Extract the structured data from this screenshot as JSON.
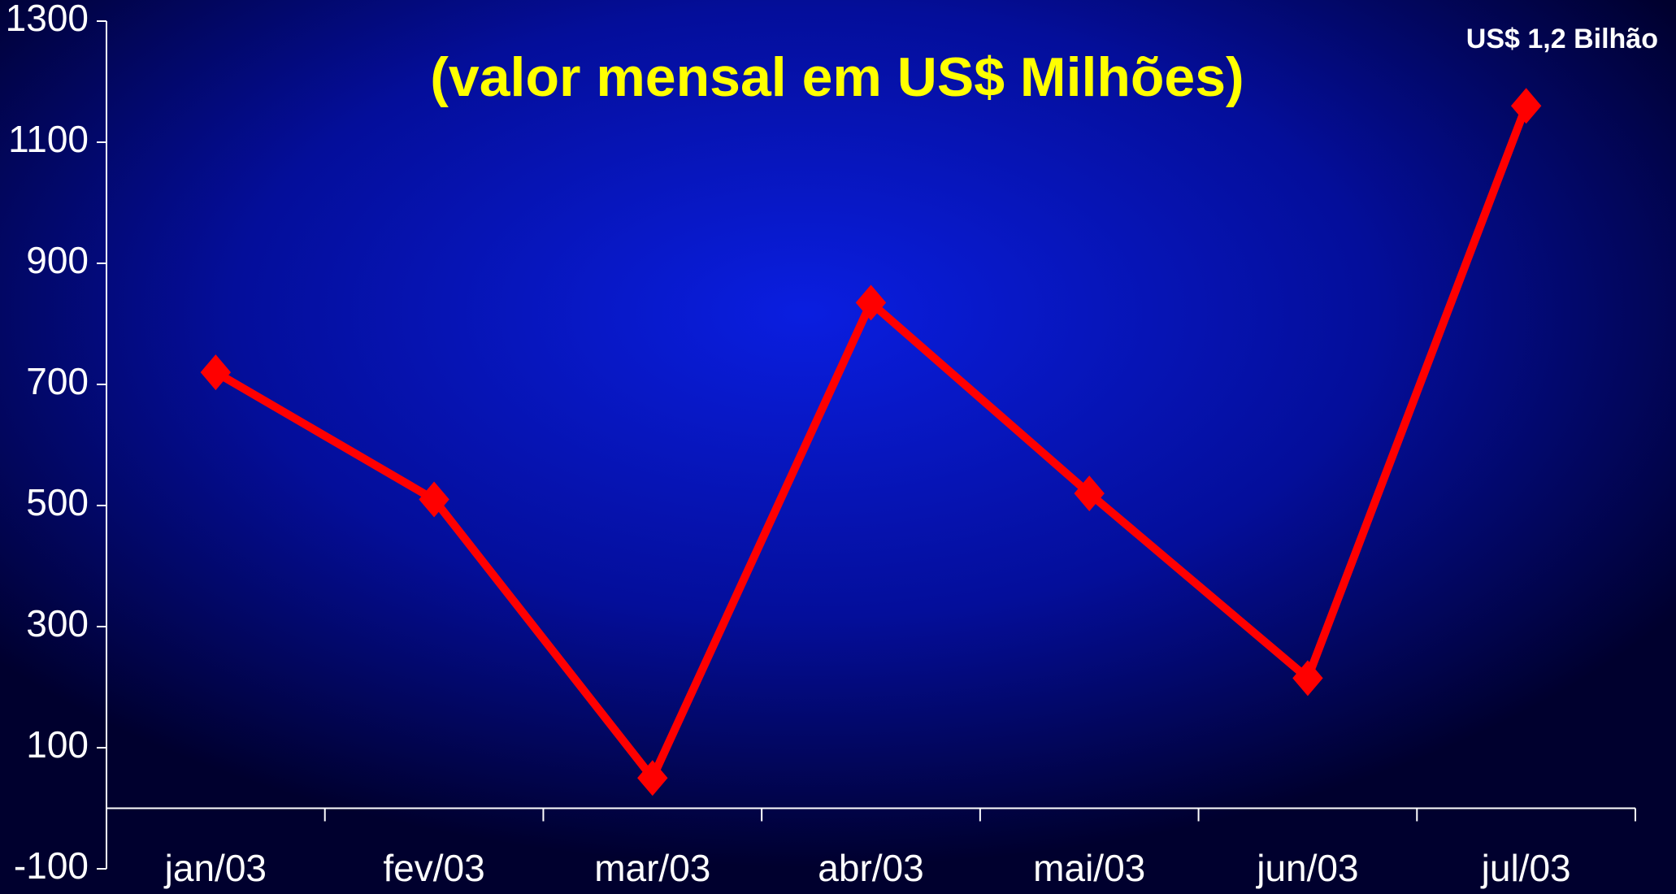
{
  "chart_data": {
    "type": "line",
    "title": "(valor mensal em US$ Milhões)",
    "annotation": "US$ 1,2 Bilhão",
    "categories": [
      "jan/03",
      "fev/03",
      "mar/03",
      "abr/03",
      "mai/03",
      "jun/03",
      "jul/03"
    ],
    "series": [
      {
        "name": "valor mensal",
        "color": "#ff0000",
        "values": [
          720,
          510,
          50,
          835,
          520,
          215,
          1160
        ]
      }
    ],
    "ylim": [
      -100,
      1300
    ],
    "yticks": [
      -100,
      100,
      300,
      500,
      700,
      900,
      1100,
      1300
    ],
    "grid": false
  }
}
